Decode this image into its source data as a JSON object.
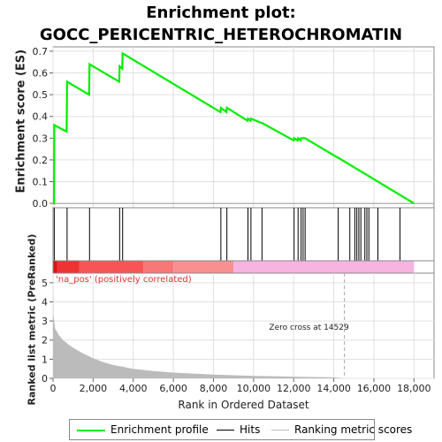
{
  "title_line1": "Enrichment plot:",
  "title_line2": "GOCC_PERICENTRIC_HETEROCHROMATIN",
  "ylabel_top": "Enrichment score (ES)",
  "ylabel_bottom": "Ranked list metric (PreRanked)",
  "xlabel": "Rank in Ordered Dataset",
  "pos_label": "'na_pos' (positively correlated)",
  "zero_cross_label": "Zero cross at 14529",
  "legend": {
    "enrichment": "Enrichment profile",
    "hits": "Hits",
    "ranking": "Ranking metric scores"
  },
  "colors": {
    "enrichment": "#00ee00",
    "hits": "#000000",
    "ranking": "#bbbbbb",
    "grid": "#e0e0e0",
    "zero_line": "#aaaaaa",
    "pos_label": "#dd3333",
    "bar_seg1": "#dd1111",
    "bar_seg2": "#ee3333",
    "bar_seg3": "#f75555",
    "bar_seg4": "#f87777",
    "bar_seg5": "#f89090",
    "bar_seg6": "#f8b4e0"
  },
  "chart_data": {
    "type": "line",
    "xlim": [
      0,
      19000
    ],
    "x_ticks": [
      0,
      2000,
      4000,
      6000,
      8000,
      10000,
      12000,
      14000,
      16000,
      18000
    ],
    "x_tick_labels": [
      "0",
      "2,000",
      "4,000",
      "6,000",
      "8,000",
      "10,000",
      "12,000",
      "14,000",
      "16,000",
      "18,000"
    ],
    "es_panel": {
      "ylim": [
        -0.02,
        0.72
      ],
      "y_ticks": [
        0.0,
        0.1,
        0.2,
        0.3,
        0.4,
        0.5,
        0.6,
        0.7
      ],
      "y_tick_labels": [
        "0.0",
        "0.1",
        "0.2",
        "0.3",
        "0.4",
        "0.5",
        "0.6",
        "0.7"
      ],
      "series": [
        {
          "name": "Enrichment profile",
          "x": [
            0,
            50,
            60,
            680,
            700,
            1800,
            1820,
            3300,
            3320,
            3450,
            3470,
            8350,
            8370,
            8500,
            8520,
            8650,
            8670,
            9700,
            9720,
            9850,
            9870,
            10400,
            10420,
            12000,
            12020,
            12200,
            12220,
            12350,
            12370,
            12450,
            12470,
            12550,
            12570,
            14200,
            14220,
            18000
          ],
          "y": [
            0.0,
            0.0,
            0.36,
            0.33,
            0.56,
            0.5,
            0.64,
            0.56,
            0.63,
            0.62,
            0.69,
            0.42,
            0.44,
            0.43,
            0.43,
            0.42,
            0.44,
            0.38,
            0.39,
            0.38,
            0.39,
            0.37,
            0.37,
            0.29,
            0.3,
            0.29,
            0.3,
            0.29,
            0.3,
            0.3,
            0.3,
            0.3,
            0.3,
            0.21,
            0.21,
            0.0
          ]
        }
      ]
    },
    "hits": [
      60,
      700,
      1820,
      3320,
      3470,
      8370,
      8670,
      9720,
      9870,
      10420,
      12020,
      12220,
      12370,
      12470,
      12570,
      14220,
      14800,
      15050,
      15150,
      15250,
      15350,
      15550,
      15650,
      15750,
      16200,
      17300
    ],
    "heat_bar": [
      {
        "from": 0,
        "to": 200,
        "color_key": "bar_seg1"
      },
      {
        "from": 200,
        "to": 1300,
        "color_key": "bar_seg2"
      },
      {
        "from": 1300,
        "to": 4500,
        "color_key": "bar_seg3"
      },
      {
        "from": 4500,
        "to": 6000,
        "color_key": "bar_seg4"
      },
      {
        "from": 6000,
        "to": 9000,
        "color_key": "bar_seg5"
      },
      {
        "from": 9000,
        "to": 18000,
        "color_key": "bar_seg6"
      }
    ],
    "metric_panel": {
      "ylim": [
        0,
        5.5
      ],
      "y_ticks": [
        0,
        1,
        2,
        3,
        4,
        5
      ],
      "y_tick_labels": [
        "0",
        "1",
        "2",
        "3",
        "4",
        "5"
      ],
      "zero_cross": 14529,
      "series": [
        {
          "name": "Ranking metric scores",
          "x": [
            0,
            20,
            100,
            300,
            500,
            800,
            1000,
            1500,
            2000,
            2500,
            3000,
            3500,
            4000,
            5000,
            6000,
            7000,
            8000,
            9000,
            10000,
            11000,
            12000,
            13000,
            14000,
            14529
          ],
          "y": [
            5.3,
            3.3,
            2.6,
            2.25,
            2.0,
            1.75,
            1.6,
            1.3,
            1.05,
            0.85,
            0.7,
            0.6,
            0.5,
            0.38,
            0.3,
            0.25,
            0.2,
            0.16,
            0.13,
            0.11,
            0.09,
            0.07,
            0.05,
            0.0
          ]
        }
      ]
    }
  }
}
